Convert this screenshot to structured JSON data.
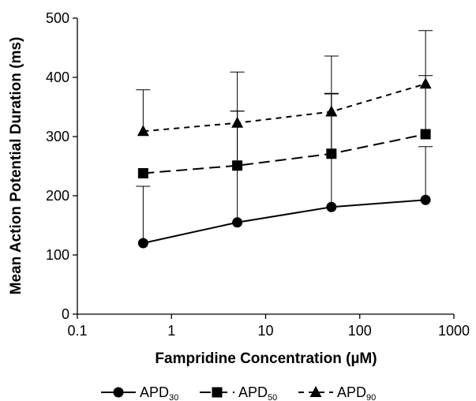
{
  "chart_data": {
    "type": "line",
    "xlabel": "Fampridine Concentration (µM)",
    "ylabel": "Mean Action Potential Duration (ms)",
    "x_scale": "log",
    "xlim": [
      0.1,
      1000
    ],
    "ylim": [
      0,
      500
    ],
    "x_ticks": [
      0.1,
      1,
      10,
      100,
      1000
    ],
    "x_tick_labels": [
      "0.1",
      "1",
      "10",
      "100",
      "1000"
    ],
    "y_ticks": [
      0,
      100,
      200,
      300,
      400,
      500
    ],
    "y_tick_labels": [
      "0",
      "100",
      "200",
      "300",
      "400",
      "500"
    ],
    "grid": false,
    "legend_position": "bottom",
    "x": [
      0.5,
      5,
      50,
      500
    ],
    "series": [
      {
        "name": "APD",
        "subscript": "30",
        "marker": "circle",
        "dash": "solid",
        "values": [
          120,
          155,
          181,
          193
        ],
        "error_plus": [
          96,
          188,
          191,
          90
        ]
      },
      {
        "name": "APD",
        "subscript": "50",
        "marker": "square",
        "dash": "long-dash",
        "values": [
          238,
          251,
          271,
          304
        ],
        "error_plus": [
          0,
          92,
          102,
          99
        ]
      },
      {
        "name": "APD",
        "subscript": "90",
        "marker": "triangle",
        "dash": "short-dash",
        "values": [
          309,
          323,
          342,
          389
        ],
        "error_plus": [
          70,
          86,
          94,
          90
        ]
      }
    ]
  }
}
